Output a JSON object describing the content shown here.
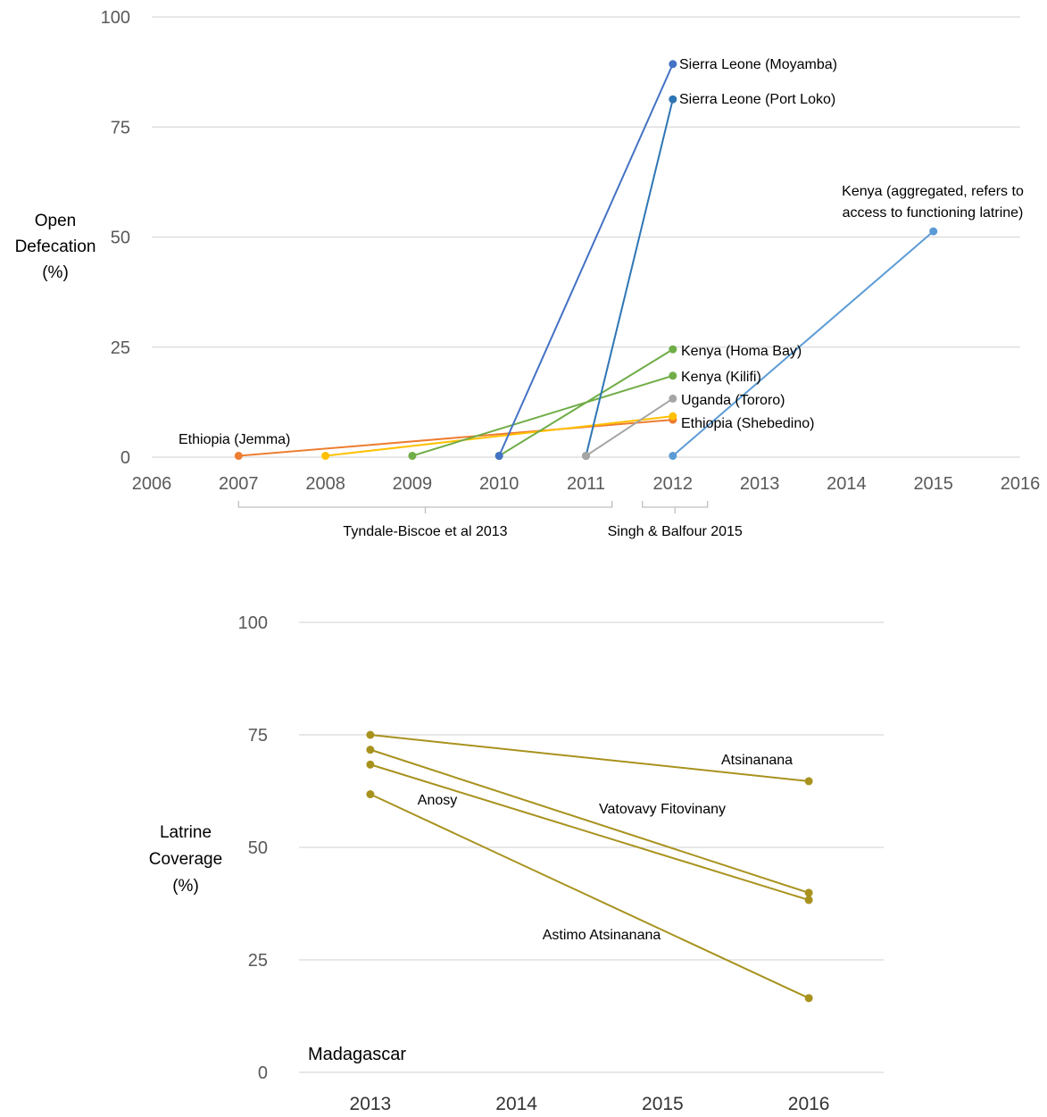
{
  "chart_data": [
    {
      "type": "line",
      "ylabel_lines": [
        "Open",
        "Defecation",
        "(%)"
      ],
      "xlim": [
        2006,
        2016
      ],
      "ylim": [
        0,
        100
      ],
      "x_ticks": [
        "2006",
        "2007",
        "2008",
        "2009",
        "2010",
        "2011",
        "2012",
        "2013",
        "2014",
        "2015",
        "2016"
      ],
      "y_ticks": [
        "0",
        "25",
        "50",
        "75",
        "100"
      ],
      "grid": true,
      "series": [
        {
          "name": "Ethiopia (Jemma)",
          "color": "#ED7D31",
          "x": [
            2007,
            2012
          ],
          "y": [
            0.3,
            8.5
          ]
        },
        {
          "name": "Ethiopia (Shebedino)",
          "color": "#FFC000",
          "x": [
            2008,
            2012
          ],
          "y": [
            0.3,
            9.3
          ]
        },
        {
          "name": "Kenya (Kilifi)",
          "color": "#70AD47",
          "x": [
            2009,
            2012
          ],
          "y": [
            0.3,
            18.5
          ]
        },
        {
          "name": "Kenya (Homa Bay)",
          "color": "#70AD47",
          "x": [
            2010,
            2012
          ],
          "y": [
            0.3,
            24.5
          ]
        },
        {
          "name": "Sierra Leone (Moyamba)",
          "color": "#4472C4",
          "x": [
            2010,
            2012
          ],
          "y": [
            0.3,
            89.3
          ]
        },
        {
          "name": "Sierra Leone (Port Loko)",
          "color": "#2E75B6",
          "x": [
            2011,
            2012
          ],
          "y": [
            0.3,
            81.3
          ]
        },
        {
          "name": "Uganda (Tororo)",
          "color": "#A5A5A5",
          "x": [
            2011,
            2012
          ],
          "y": [
            0.3,
            13.3
          ]
        },
        {
          "name": "Kenya (aggregated, refers to access to functioning latrine)",
          "color": "#5B9BD5",
          "x": [
            2012,
            2015
          ],
          "y": [
            0.3,
            51.3
          ]
        }
      ],
      "labels": {
        "ethiopia_jemma": "Ethiopia (Jemma)",
        "sierra_moyamba": "Sierra Leone (Moyamba)",
        "sierra_portloko": "Sierra Leone (Port Loko)",
        "kenya_agg_line1": "Kenya (aggregated, refers to",
        "kenya_agg_line2": "access to functioning latrine)",
        "kenya_homabay": "Kenya (Homa Bay)",
        "kenya_kilifi": "Kenya (Kilifi)",
        "uganda_tororo": "Uganda (Tororo)",
        "ethiopia_shebedino": "Ethiopia (Shebedino)"
      },
      "sources": [
        {
          "label": "Tyndale-Biscoe et al 2013",
          "from": 2007,
          "to": 2011.3
        },
        {
          "label": "Singh & Balfour 2015",
          "from": 2011.65,
          "to": 2012.4
        }
      ]
    },
    {
      "type": "line",
      "ylabel_lines": [
        "Latrine",
        "Coverage",
        "(%)"
      ],
      "categories": [
        "2013",
        "2014",
        "2015",
        "2016"
      ],
      "ylim": [
        0,
        100
      ],
      "y_ticks": [
        "0",
        "25",
        "50",
        "75",
        "100"
      ],
      "grid": true,
      "annotation": "Madagascar",
      "color": "#A8921E",
      "series": [
        {
          "name": "Atsinanana",
          "x": [
            "2013",
            "2016"
          ],
          "y": [
            75,
            64.7
          ]
        },
        {
          "name": "Vatovavy Fitovinany",
          "x": [
            "2013",
            "2016"
          ],
          "y": [
            71.7,
            39.9
          ]
        },
        {
          "name": "Anosy",
          "x": [
            "2013",
            "2016"
          ],
          "y": [
            68.4,
            38.3
          ]
        },
        {
          "name": "Astimo Atsinanana",
          "x": [
            "2013",
            "2016"
          ],
          "y": [
            61.8,
            16.5
          ]
        }
      ]
    }
  ]
}
